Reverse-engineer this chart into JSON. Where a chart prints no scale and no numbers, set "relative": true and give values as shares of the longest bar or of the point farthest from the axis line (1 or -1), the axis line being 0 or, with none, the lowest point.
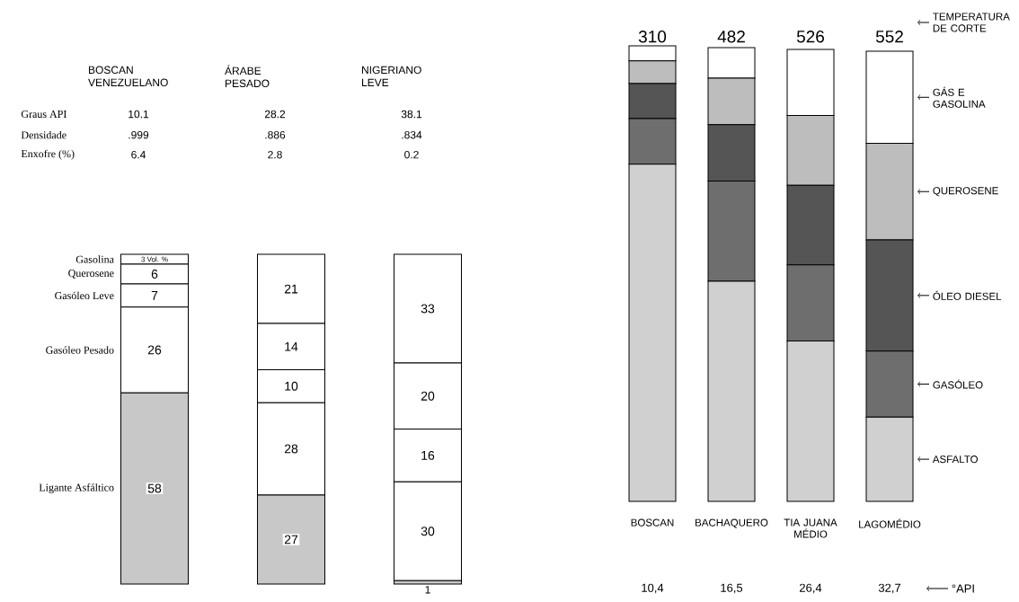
{
  "chart_data": [
    {
      "type": "bar",
      "stacked": true,
      "tick_labels": "x",
      "categories": [
        "BOSCAN VENEZUELANO",
        "ÁRABE PESADO",
        "NIGERIANO LEVE"
      ],
      "series": [
        {
          "name": "Ligante Asfáltico",
          "color": "#c8c8c8",
          "values": [
            58,
            27,
            1
          ],
          "value_labels": [
            "58",
            "27",
            "1"
          ]
        },
        {
          "name": "Gasóleo Pesado",
          "color": "#ffffff",
          "values": [
            26,
            28,
            30
          ],
          "value_labels": [
            "26",
            "28",
            "30"
          ]
        },
        {
          "name": "Gasóleo Leve",
          "color": "#ffffff",
          "values": [
            7,
            10,
            16
          ],
          "value_labels": [
            "7",
            "10",
            "16"
          ]
        },
        {
          "name": "Querosene",
          "color": "#ffffff",
          "values": [
            6,
            14,
            20
          ],
          "value_labels": [
            "6",
            "14",
            "20"
          ]
        },
        {
          "name": "Gasolina",
          "color": "#ffffff",
          "values": [
            3,
            21,
            33
          ],
          "value_labels": [
            "3 Vol. %",
            "21",
            "33"
          ]
        }
      ],
      "annotations": [
        "Graus API",
        "Densidade",
        "Enxofre (%)",
        "10.1",
        "28.2",
        "38.1",
        ".999",
        ".886",
        ".834",
        "6.4",
        "2.8",
        "0.2"
      ]
    },
    {
      "type": "bar",
      "stacked": true,
      "relative": true,
      "legend": "right",
      "categories": [
        "BOSCAN",
        "BACHAQUERO",
        "TIA JUANA MÉDIO",
        "LAGOMÉDIO"
      ],
      "series": [
        {
          "name": "ASFALTO",
          "color": "#d0d0d0",
          "values": [
            0.74,
            0.483,
            0.352,
            0.185
          ]
        },
        {
          "name": "GASÓLEO",
          "color": "#6e6e6e",
          "values": [
            0.1,
            0.22,
            0.167,
            0.145
          ]
        },
        {
          "name": "ÓLEO DIESEL",
          "color": "#555555",
          "values": [
            0.077,
            0.124,
            0.175,
            0.244
          ]
        },
        {
          "name": "QUEROSENE",
          "color": "#bdbdbd",
          "values": [
            0.05,
            0.102,
            0.153,
            0.212
          ]
        },
        {
          "name": "GÁS E GASOLINA",
          "color": "#ffffff",
          "values": [
            0.033,
            0.067,
            0.145,
            0.202
          ]
        }
      ],
      "annotations": [
        "TEMPERATURA DE CORTE",
        "°API",
        "310",
        "482",
        "526",
        "552",
        "10,4",
        "16,5",
        "26,4",
        "32,7"
      ]
    }
  ]
}
